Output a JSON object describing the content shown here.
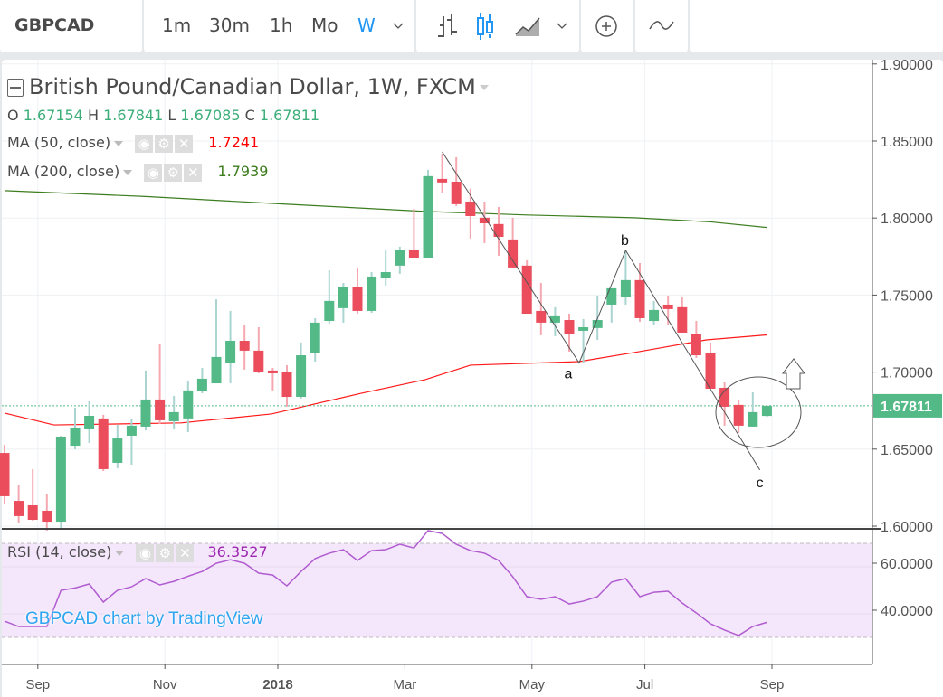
{
  "toolbar": {
    "symbol": "GBPCAD",
    "intervals": [
      "1m",
      "30m",
      "1h",
      "Mo",
      "W"
    ],
    "active_interval": "W",
    "icons": [
      "bars-icon",
      "candles-icon",
      "area-icon",
      "chevron-down-icon",
      "add-compare-icon",
      "indicators-icon"
    ]
  },
  "legend": {
    "title": "British Pound/Canadian Dollar, 1W, FXCM",
    "ohlc": {
      "o_label": "O",
      "o": "1.67154",
      "h_label": "H",
      "h": "1.67841",
      "l_label": "L",
      "l": "1.67085",
      "c_label": "C",
      "c": "1.67811"
    },
    "ma50": {
      "label": "MA (50, close)",
      "value": "1.7241",
      "color": "#ff0000"
    },
    "ma200": {
      "label": "MA (200, close)",
      "value": "1.7939",
      "color": "#3c7d1e"
    },
    "rsi": {
      "label": "RSI (14, close)",
      "value": "36.3527",
      "color": "#9c27b0"
    }
  },
  "watermark": "GBPCAD chart by TradingView",
  "colors": {
    "up": "#53b987",
    "down": "#eb4d5c",
    "accent": "#2196f3",
    "rsi": "#b05cd0"
  },
  "chart_data": {
    "type": "candlestick",
    "title": "British Pound/Canadian Dollar, 1W, FXCM",
    "price_axis": {
      "ticks": [
        "1.90000",
        "1.85000",
        "1.80000",
        "1.75000",
        "1.70000",
        "1.65000",
        "1.60000"
      ],
      "tick_values": [
        1.9,
        1.85,
        1.8,
        1.75,
        1.7,
        1.65,
        1.6
      ],
      "range": [
        1.6,
        1.9
      ],
      "last_price": "1.67811",
      "last_value": 1.67811
    },
    "time_axis": {
      "ticks": [
        "Sep",
        "Nov",
        "2018",
        "Mar",
        "May",
        "Jul",
        "Sep"
      ],
      "tick_candle_index": [
        3,
        12,
        20,
        29,
        38,
        46,
        55
      ]
    },
    "candles_ohlc": [
      [
        1.6475,
        1.6528,
        1.6147,
        1.6194
      ],
      [
        1.6164,
        1.6264,
        1.6018,
        1.6065
      ],
      [
        1.6135,
        1.637,
        1.6035,
        1.6041
      ],
      [
        1.61,
        1.6211,
        1.5971,
        1.6029
      ],
      [
        1.6029,
        1.6587,
        1.5982,
        1.6581
      ],
      [
        1.6522,
        1.6769,
        1.6499,
        1.664
      ],
      [
        1.6634,
        1.681,
        1.654,
        1.6716
      ],
      [
        1.6699,
        1.6722,
        1.6358,
        1.637
      ],
      [
        1.6411,
        1.6657,
        1.6376,
        1.6569
      ],
      [
        1.6587,
        1.6699,
        1.6399,
        1.6652
      ],
      [
        1.6646,
        1.701,
        1.6622,
        1.6822
      ],
      [
        1.6822,
        1.718,
        1.6663,
        1.6687
      ],
      [
        1.6681,
        1.6845,
        1.6634,
        1.674
      ],
      [
        1.6699,
        1.6945,
        1.661,
        1.6881
      ],
      [
        1.6875,
        1.7027,
        1.6863,
        1.6957
      ],
      [
        1.6927,
        1.7473,
        1.6927,
        1.7098
      ],
      [
        1.7062,
        1.7397,
        1.6927,
        1.7203
      ],
      [
        1.7203,
        1.7309,
        1.7016,
        1.7139
      ],
      [
        1.7139,
        1.7291,
        1.6992,
        1.6998
      ],
      [
        1.701,
        1.7027,
        1.6881,
        1.6992
      ],
      [
        1.6998,
        1.7045,
        1.6775,
        1.6839
      ],
      [
        1.6839,
        1.7192,
        1.6828,
        1.7109
      ],
      [
        1.7121,
        1.735,
        1.7068,
        1.7321
      ],
      [
        1.7332,
        1.7661,
        1.7315,
        1.7462
      ],
      [
        1.7415,
        1.7579,
        1.7321,
        1.755
      ],
      [
        1.755,
        1.7679,
        1.7379,
        1.7397
      ],
      [
        1.7397,
        1.7649,
        1.7385,
        1.762
      ],
      [
        1.7608,
        1.7796,
        1.7561,
        1.7649
      ],
      [
        1.7691,
        1.7814,
        1.7638,
        1.779
      ],
      [
        1.779,
        1.806,
        1.7743,
        1.7743
      ],
      [
        1.7743,
        1.8313,
        1.7743,
        1.8272
      ],
      [
        1.8254,
        1.8418,
        1.816,
        1.8231
      ],
      [
        1.8236,
        1.8395,
        1.8078,
        1.809
      ],
      [
        1.8107,
        1.819,
        1.7867,
        1.8013
      ],
      [
        1.8002,
        1.8107,
        1.7837,
        1.7966
      ],
      [
        1.7961,
        1.8072,
        1.7755,
        1.7878
      ],
      [
        1.7861,
        1.8002,
        1.7679,
        1.7679
      ],
      [
        1.7691,
        1.7726,
        1.7379,
        1.7379
      ],
      [
        1.7397,
        1.7579,
        1.7239,
        1.7321
      ],
      [
        1.7321,
        1.7421,
        1.7233,
        1.7368
      ],
      [
        1.7338,
        1.7379,
        1.7133,
        1.725
      ],
      [
        1.7268,
        1.7344,
        1.7057,
        1.7291
      ],
      [
        1.7286,
        1.7497,
        1.7209,
        1.7338
      ],
      [
        1.7438,
        1.7544,
        1.7321,
        1.7544
      ],
      [
        1.7485,
        1.779,
        1.7438,
        1.7597
      ],
      [
        1.7597,
        1.7708,
        1.7327,
        1.735
      ],
      [
        1.7332,
        1.7462,
        1.7303,
        1.7403
      ],
      [
        1.7438,
        1.7497,
        1.7309,
        1.7409
      ],
      [
        1.7421,
        1.7485,
        1.7256,
        1.7256
      ],
      [
        1.725,
        1.7332,
        1.7092,
        1.7109
      ],
      [
        1.7121,
        1.7192,
        1.6892,
        1.6892
      ],
      [
        1.6898,
        1.6933,
        1.6652,
        1.6775
      ],
      [
        1.6787,
        1.6816,
        1.6605,
        1.6652
      ],
      [
        1.6646,
        1.6869,
        1.6646,
        1.674
      ],
      [
        1.67154,
        1.67841,
        1.67085,
        1.67811
      ]
    ],
    "ma50_points": [
      [
        0,
        1.6734
      ],
      [
        3.5,
        1.6657
      ],
      [
        12.5,
        1.667
      ],
      [
        18.9,
        1.6728
      ],
      [
        25.3,
        1.6863
      ],
      [
        29.8,
        1.6951
      ],
      [
        33,
        1.7045
      ],
      [
        40.7,
        1.7068
      ],
      [
        44.6,
        1.7127
      ],
      [
        49.7,
        1.7209
      ],
      [
        54,
        1.7241
      ]
    ],
    "ma200_points": [
      [
        0,
        1.8178
      ],
      [
        10,
        1.814
      ],
      [
        20,
        1.809
      ],
      [
        29.8,
        1.8043
      ],
      [
        37,
        1.802
      ],
      [
        44.6,
        1.8002
      ],
      [
        50,
        1.7975
      ],
      [
        54,
        1.7939
      ]
    ],
    "annotations": {
      "labels": [
        "a",
        "b",
        "c"
      ],
      "zigzag": [
        [
          31,
          1.843
        ],
        [
          40.7,
          1.706
        ],
        [
          44,
          1.779
        ],
        [
          53.5,
          1.6365
        ]
      ]
    },
    "rsi": {
      "ticks": [
        "60.0000",
        "40.0000"
      ],
      "tick_values": [
        60,
        40
      ],
      "bands": [
        70,
        30
      ],
      "values": [
        36.9,
        34.6,
        34.6,
        34.6,
        50.0,
        51.0,
        52.7,
        45.0,
        50.0,
        51.5,
        55.0,
        52.3,
        53.8,
        56.0,
        58.0,
        61.5,
        63.0,
        61.5,
        57.3,
        56.5,
        51.9,
        58.0,
        63.5,
        65.8,
        67.3,
        62.7,
        66.9,
        67.3,
        69.6,
        68.0,
        75.4,
        74.2,
        69.6,
        66.9,
        65.8,
        62.7,
        55.8,
        47.3,
        46.2,
        47.3,
        44.2,
        45.4,
        47.3,
        53.5,
        55.0,
        47.3,
        49.2,
        49.6,
        44.6,
        40.4,
        35.8,
        33.1,
        30.8,
        34.6,
        36.4
      ]
    }
  }
}
